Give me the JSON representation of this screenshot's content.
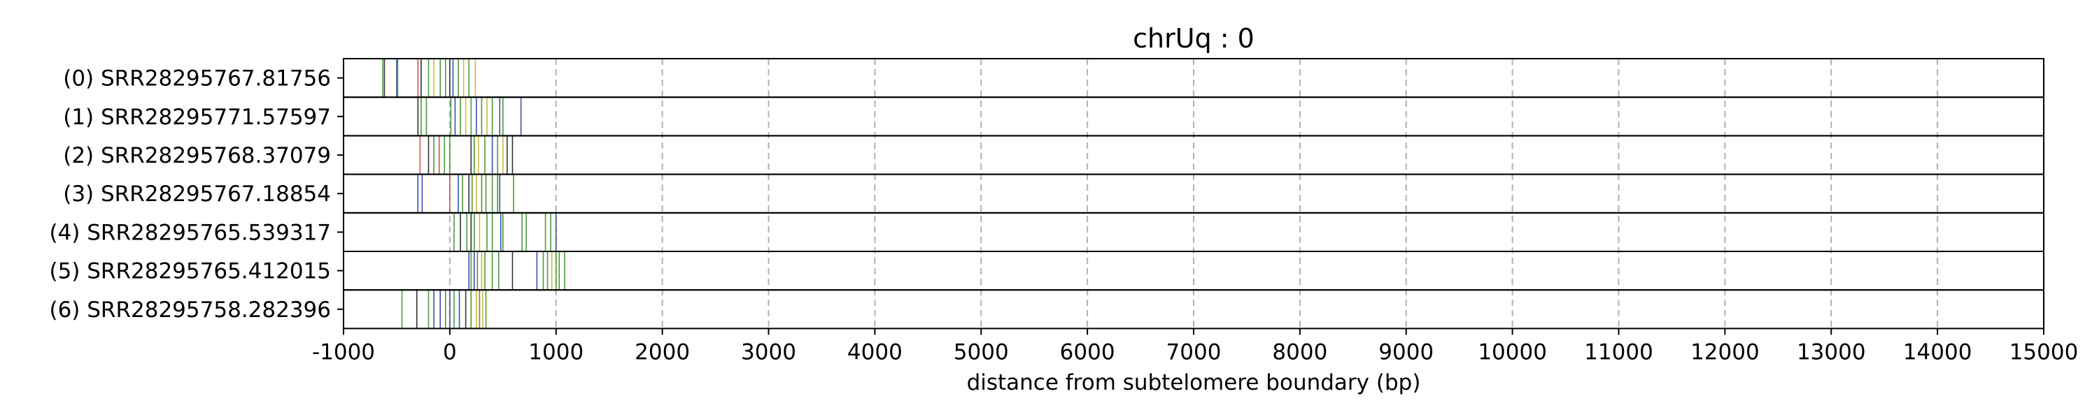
{
  "chart_data": {
    "type": "barcode",
    "title": "chrUq : 0",
    "xlabel": "distance from subtelomere boundary (bp)",
    "ylabel": "",
    "xlim": [
      -1000,
      15000
    ],
    "xticks": [
      -1000,
      0,
      1000,
      2000,
      3000,
      4000,
      5000,
      6000,
      7000,
      8000,
      9000,
      10000,
      11000,
      12000,
      13000,
      14000,
      15000
    ],
    "grid": "vertical dashed at x ticks",
    "colors": {
      "green": "#4c9a3c",
      "blue": "#3e4fb0",
      "red": "#d9534f",
      "yellow": "#d7b640",
      "dark": "#333333"
    },
    "rows": [
      {
        "label": "(0) SRR28295767.81756",
        "marks": [
          {
            "x": -630,
            "c": "green"
          },
          {
            "x": -615,
            "c": "dark"
          },
          {
            "x": -500,
            "c": "blue"
          },
          {
            "x": -490,
            "c": "green"
          },
          {
            "x": -300,
            "c": "red"
          },
          {
            "x": -270,
            "c": "dark"
          },
          {
            "x": -200,
            "c": "green"
          },
          {
            "x": -150,
            "c": "yellow"
          },
          {
            "x": -90,
            "c": "green"
          },
          {
            "x": -40,
            "c": "green"
          },
          {
            "x": 0,
            "c": "dark"
          },
          {
            "x": 30,
            "c": "blue"
          },
          {
            "x": 80,
            "c": "green"
          },
          {
            "x": 130,
            "c": "yellow"
          },
          {
            "x": 180,
            "c": "green"
          },
          {
            "x": 240,
            "c": "yellow"
          }
        ]
      },
      {
        "label": "(1) SRR28295771.57597",
        "marks": [
          {
            "x": -300,
            "c": "dark"
          },
          {
            "x": -270,
            "c": "green"
          },
          {
            "x": -220,
            "c": "green"
          },
          {
            "x": 10,
            "c": "green"
          },
          {
            "x": 50,
            "c": "blue"
          },
          {
            "x": 100,
            "c": "green"
          },
          {
            "x": 150,
            "c": "yellow"
          },
          {
            "x": 200,
            "c": "green"
          },
          {
            "x": 250,
            "c": "blue"
          },
          {
            "x": 300,
            "c": "green"
          },
          {
            "x": 350,
            "c": "yellow"
          },
          {
            "x": 400,
            "c": "green"
          },
          {
            "x": 470,
            "c": "blue"
          },
          {
            "x": 500,
            "c": "green"
          },
          {
            "x": 670,
            "c": "blue"
          }
        ]
      },
      {
        "label": "(2) SRR28295768.37079",
        "marks": [
          {
            "x": -280,
            "c": "red"
          },
          {
            "x": -200,
            "c": "dark"
          },
          {
            "x": -150,
            "c": "green"
          },
          {
            "x": -100,
            "c": "red"
          },
          {
            "x": -50,
            "c": "green"
          },
          {
            "x": 0,
            "c": "green"
          },
          {
            "x": 200,
            "c": "dark"
          },
          {
            "x": 230,
            "c": "green"
          },
          {
            "x": 270,
            "c": "yellow"
          },
          {
            "x": 330,
            "c": "green"
          },
          {
            "x": 400,
            "c": "blue"
          },
          {
            "x": 450,
            "c": "green"
          },
          {
            "x": 500,
            "c": "yellow"
          },
          {
            "x": 540,
            "c": "dark"
          },
          {
            "x": 590,
            "c": "dark"
          }
        ]
      },
      {
        "label": "(3) SRR28295767.18854",
        "marks": [
          {
            "x": -300,
            "c": "blue"
          },
          {
            "x": -260,
            "c": "blue"
          },
          {
            "x": 0,
            "c": "red"
          },
          {
            "x": 80,
            "c": "blue"
          },
          {
            "x": 120,
            "c": "green"
          },
          {
            "x": 180,
            "c": "dark"
          },
          {
            "x": 210,
            "c": "green"
          },
          {
            "x": 250,
            "c": "yellow"
          },
          {
            "x": 300,
            "c": "green"
          },
          {
            "x": 340,
            "c": "green"
          },
          {
            "x": 400,
            "c": "green"
          },
          {
            "x": 450,
            "c": "green"
          },
          {
            "x": 470,
            "c": "blue"
          },
          {
            "x": 600,
            "c": "green"
          }
        ]
      },
      {
        "label": "(4) SRR28295765.539317",
        "marks": [
          {
            "x": 40,
            "c": "green"
          },
          {
            "x": 100,
            "c": "dark"
          },
          {
            "x": 160,
            "c": "green"
          },
          {
            "x": 200,
            "c": "dark"
          },
          {
            "x": 230,
            "c": "green"
          },
          {
            "x": 280,
            "c": "yellow"
          },
          {
            "x": 350,
            "c": "green"
          },
          {
            "x": 400,
            "c": "green"
          },
          {
            "x": 480,
            "c": "blue"
          },
          {
            "x": 500,
            "c": "green"
          },
          {
            "x": 680,
            "c": "green"
          },
          {
            "x": 720,
            "c": "green"
          },
          {
            "x": 900,
            "c": "green"
          },
          {
            "x": 950,
            "c": "green"
          },
          {
            "x": 1000,
            "c": "blue"
          }
        ]
      },
      {
        "label": "(5) SRR28295765.412015",
        "marks": [
          {
            "x": 180,
            "c": "blue"
          },
          {
            "x": 200,
            "c": "green"
          },
          {
            "x": 230,
            "c": "blue"
          },
          {
            "x": 260,
            "c": "green"
          },
          {
            "x": 300,
            "c": "yellow"
          },
          {
            "x": 330,
            "c": "green"
          },
          {
            "x": 400,
            "c": "green"
          },
          {
            "x": 460,
            "c": "green"
          },
          {
            "x": 590,
            "c": "dark"
          },
          {
            "x": 820,
            "c": "blue"
          },
          {
            "x": 880,
            "c": "green"
          },
          {
            "x": 920,
            "c": "green"
          },
          {
            "x": 960,
            "c": "yellow"
          },
          {
            "x": 1000,
            "c": "green"
          },
          {
            "x": 1030,
            "c": "green"
          },
          {
            "x": 1080,
            "c": "green"
          }
        ]
      },
      {
        "label": "(6) SRR28295758.282396",
        "marks": [
          {
            "x": -450,
            "c": "green"
          },
          {
            "x": -310,
            "c": "dark"
          },
          {
            "x": -200,
            "c": "green"
          },
          {
            "x": -150,
            "c": "blue"
          },
          {
            "x": -90,
            "c": "blue"
          },
          {
            "x": -40,
            "c": "green"
          },
          {
            "x": 0,
            "c": "blue"
          },
          {
            "x": 40,
            "c": "green"
          },
          {
            "x": 90,
            "c": "blue"
          },
          {
            "x": 150,
            "c": "dark"
          },
          {
            "x": 200,
            "c": "green"
          },
          {
            "x": 250,
            "c": "yellow"
          },
          {
            "x": 280,
            "c": "green"
          },
          {
            "x": 310,
            "c": "yellow"
          },
          {
            "x": 340,
            "c": "green"
          }
        ]
      }
    ]
  }
}
